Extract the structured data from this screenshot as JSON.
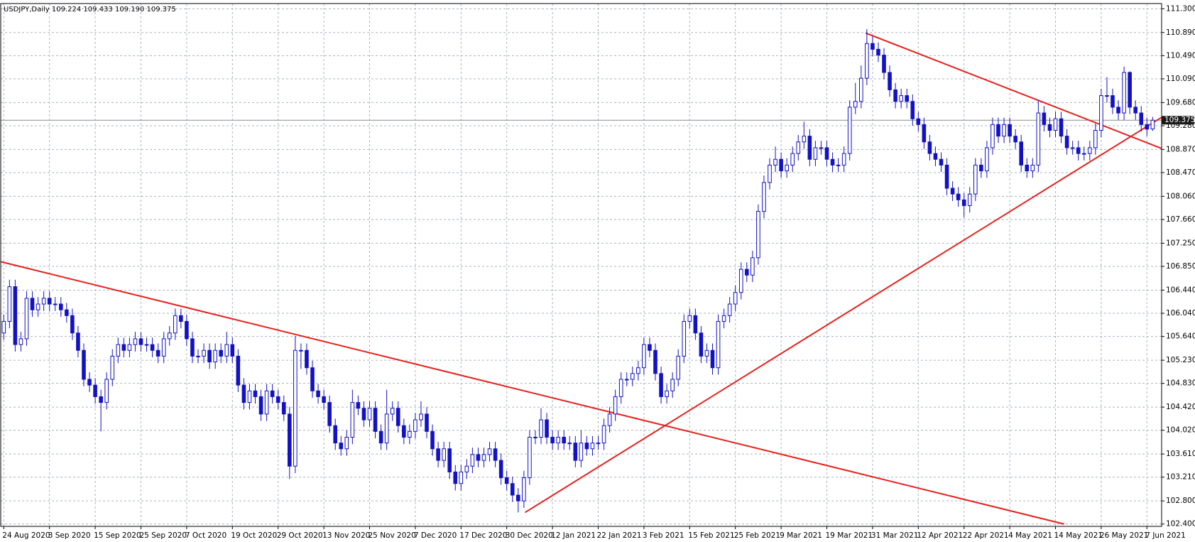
{
  "chart_data": {
    "type": "candlestick",
    "title": "USDJPY,Daily  109.224 109.433 109.190 109.375",
    "color": "#1212c4",
    "up_fill": "#ffffff",
    "grid": true,
    "ylim": [
      102.36,
      111.39
    ],
    "yticks": [
      {
        "value": 111.3,
        "label": "111.300"
      },
      {
        "value": 110.89,
        "label": "110.890"
      },
      {
        "value": 110.49,
        "label": "110.490"
      },
      {
        "value": 110.09,
        "label": "110.090"
      },
      {
        "value": 109.68,
        "label": "109.680"
      },
      {
        "value": 109.28,
        "label": "109.280"
      },
      {
        "value": 108.87,
        "label": "108.870"
      },
      {
        "value": 108.47,
        "label": "108.470"
      },
      {
        "value": 108.06,
        "label": "108.060"
      },
      {
        "value": 107.66,
        "label": "107.660"
      },
      {
        "value": 107.25,
        "label": "107.250"
      },
      {
        "value": 106.85,
        "label": "106.850"
      },
      {
        "value": 106.44,
        "label": "106.440"
      },
      {
        "value": 106.04,
        "label": "106.040"
      },
      {
        "value": 105.64,
        "label": "105.640"
      },
      {
        "value": 105.23,
        "label": "105.230"
      },
      {
        "value": 104.83,
        "label": "104.830"
      },
      {
        "value": 104.42,
        "label": "104.420"
      },
      {
        "value": 104.02,
        "label": "104.020"
      },
      {
        "value": 103.61,
        "label": "103.610"
      },
      {
        "value": 103.21,
        "label": "103.210"
      },
      {
        "value": 102.8,
        "label": "102.800"
      },
      {
        "value": 102.4,
        "label": "102.400"
      }
    ],
    "current_price": 109.375,
    "current_price_color": "#8c8c8c",
    "categories": [
      "24 Aug 2020",
      null,
      null,
      null,
      null,
      null,
      null,
      null,
      "3 Sep 2020",
      null,
      null,
      null,
      null,
      null,
      null,
      null,
      "15 Sep 2020",
      null,
      null,
      null,
      null,
      null,
      null,
      null,
      "25 Sep 2020",
      null,
      null,
      null,
      null,
      null,
      null,
      null,
      "7 Oct 2020",
      null,
      null,
      null,
      null,
      null,
      null,
      null,
      "19 Oct 2020",
      null,
      null,
      null,
      null,
      null,
      null,
      null,
      "29 Oct 2020",
      null,
      null,
      null,
      null,
      null,
      null,
      null,
      "13 Nov 2020",
      null,
      null,
      null,
      null,
      null,
      null,
      null,
      "25 Nov 2020",
      null,
      null,
      null,
      null,
      null,
      null,
      null,
      "7 Dec 2020",
      null,
      null,
      null,
      null,
      null,
      null,
      null,
      "17 Dec 2020",
      null,
      null,
      null,
      null,
      null,
      null,
      null,
      "30 Dec 2020",
      null,
      null,
      null,
      null,
      null,
      null,
      null,
      "12 Jan 2021",
      null,
      null,
      null,
      null,
      null,
      null,
      null,
      "22 Jan 2021",
      null,
      null,
      null,
      null,
      null,
      null,
      null,
      "3 Feb 2021",
      null,
      null,
      null,
      null,
      null,
      null,
      null,
      "15 Feb 2021",
      null,
      null,
      null,
      null,
      null,
      null,
      null,
      "25 Feb 2021",
      null,
      null,
      null,
      null,
      null,
      null,
      null,
      "9 Mar 2021",
      null,
      null,
      null,
      null,
      null,
      null,
      null,
      "19 Mar 2021",
      null,
      null,
      null,
      null,
      null,
      null,
      null,
      "31 Mar 2021",
      null,
      null,
      null,
      null,
      null,
      null,
      null,
      "12 Apr 2021",
      null,
      null,
      null,
      null,
      null,
      null,
      null,
      "22 Apr 2021",
      null,
      null,
      null,
      null,
      null,
      null,
      null,
      "4 May 2021",
      null,
      null,
      null,
      null,
      null,
      null,
      null,
      "14 May 2021",
      null,
      null,
      null,
      null,
      null,
      null,
      null,
      "26 May 2021",
      null,
      null,
      null,
      null,
      null,
      null,
      null,
      "7 Jun 2021",
      null
    ],
    "open": [
      105.7,
      105.9,
      106.5,
      105.5,
      105.6,
      106.3,
      106.1,
      106.2,
      106.3,
      106.2,
      106.2,
      106.1,
      106.0,
      105.7,
      105.4,
      104.9,
      104.8,
      104.6,
      104.5,
      104.9,
      105.3,
      105.5,
      105.4,
      105.5,
      105.6,
      105.5,
      105.5,
      105.4,
      105.3,
      105.6,
      105.7,
      106.0,
      105.9,
      105.6,
      105.3,
      105.3,
      105.4,
      105.2,
      105.4,
      105.3,
      105.5,
      105.3,
      104.8,
      104.5,
      104.7,
      104.6,
      104.3,
      104.7,
      104.6,
      104.5,
      104.3,
      103.4,
      105.4,
      105.4,
      105.1,
      104.7,
      104.6,
      104.5,
      104.1,
      103.8,
      103.7,
      103.9,
      104.5,
      104.4,
      104.2,
      104.4,
      104.0,
      103.8,
      104.3,
      104.4,
      104.1,
      103.9,
      104.0,
      104.2,
      104.3,
      104.0,
      103.7,
      103.5,
      103.7,
      103.3,
      103.1,
      103.3,
      103.4,
      103.6,
      103.5,
      103.6,
      103.7,
      103.5,
      103.2,
      103.1,
      102.9,
      102.8,
      103.2,
      103.9,
      103.9,
      104.2,
      103.9,
      103.8,
      103.9,
      103.8,
      103.8,
      103.5,
      103.8,
      103.7,
      103.8,
      103.8,
      104.1,
      104.3,
      104.6,
      104.9,
      104.9,
      105.0,
      105.1,
      105.5,
      105.4,
      105.0,
      104.6,
      104.7,
      104.9,
      105.3,
      105.9,
      106.0,
      105.7,
      105.3,
      105.4,
      105.1,
      105.9,
      106.0,
      106.2,
      106.4,
      106.8,
      106.7,
      107.0,
      107.8,
      108.3,
      108.6,
      108.7,
      108.5,
      108.6,
      108.8,
      109.0,
      109.1,
      108.7,
      108.9,
      108.9,
      108.7,
      108.6,
      108.6,
      108.8,
      109.6,
      109.7,
      110.1,
      110.7,
      110.6,
      110.5,
      110.2,
      109.9,
      109.7,
      109.8,
      109.7,
      109.4,
      109.3,
      109.0,
      108.8,
      108.7,
      108.6,
      108.2,
      108.1,
      108.0,
      107.9,
      108.1,
      108.6,
      108.5,
      108.9,
      109.3,
      109.1,
      109.3,
      109.1,
      109.0,
      108.6,
      108.5,
      108.6,
      109.5,
      109.3,
      109.2,
      109.4,
      109.1,
      108.9,
      108.9,
      108.8,
      108.8,
      108.9,
      109.2,
      109.8,
      109.8,
      109.6,
      109.5,
      110.2,
      109.6,
      109.5,
      109.3,
      109.224
    ],
    "high": [
      106.02,
      106.62,
      106.62,
      105.72,
      106.42,
      106.42,
      106.32,
      106.42,
      106.42,
      106.32,
      106.32,
      106.22,
      106.12,
      105.82,
      105.52,
      105.02,
      104.92,
      104.72,
      105.02,
      105.42,
      105.62,
      105.62,
      105.62,
      105.72,
      105.72,
      105.62,
      105.62,
      105.52,
      105.72,
      105.82,
      106.12,
      106.12,
      106.02,
      105.72,
      105.42,
      105.52,
      105.52,
      105.52,
      105.52,
      105.72,
      105.62,
      105.42,
      104.92,
      104.82,
      104.82,
      104.72,
      104.82,
      104.82,
      104.72,
      104.62,
      104.42,
      105.65,
      105.52,
      105.52,
      105.22,
      104.82,
      104.72,
      104.62,
      104.22,
      103.92,
      104.02,
      104.72,
      104.62,
      104.52,
      104.52,
      104.52,
      104.12,
      104.72,
      104.52,
      104.52,
      104.22,
      104.12,
      104.32,
      104.52,
      104.42,
      104.12,
      103.82,
      103.82,
      103.82,
      103.42,
      103.42,
      103.52,
      103.72,
      103.72,
      103.72,
      103.82,
      103.82,
      103.62,
      103.32,
      103.22,
      103.02,
      103.32,
      104.02,
      104.02,
      104.4,
      104.32,
      104.02,
      104.02,
      104.02,
      103.92,
      103.92,
      104.02,
      103.92,
      103.92,
      103.92,
      104.22,
      104.42,
      104.72,
      105.02,
      105.02,
      105.12,
      105.22,
      105.62,
      105.62,
      105.52,
      105.12,
      104.82,
      105.02,
      105.42,
      106.02,
      106.12,
      106.12,
      105.82,
      105.52,
      105.52,
      106.02,
      106.12,
      106.32,
      106.52,
      106.92,
      106.92,
      107.12,
      107.92,
      108.42,
      108.72,
      108.92,
      108.82,
      108.72,
      108.92,
      109.12,
      109.35,
      109.22,
      109.02,
      109.02,
      109.02,
      108.82,
      108.72,
      108.92,
      109.72,
      110.02,
      110.32,
      110.95,
      110.82,
      110.72,
      110.62,
      110.32,
      110.02,
      109.92,
      109.92,
      109.82,
      109.52,
      109.42,
      109.12,
      108.92,
      108.82,
      108.72,
      108.32,
      108.22,
      108.12,
      108.22,
      108.72,
      108.72,
      109.02,
      109.42,
      109.42,
      109.42,
      109.42,
      109.22,
      109.12,
      108.72,
      108.72,
      109.72,
      109.62,
      109.42,
      109.52,
      109.52,
      109.22,
      109.02,
      109.02,
      108.92,
      109.02,
      109.32,
      109.92,
      110.12,
      109.92,
      109.72,
      110.3,
      110.22,
      109.72,
      109.62,
      109.42,
      109.433
    ],
    "low": [
      105.58,
      105.78,
      105.38,
      105.38,
      105.48,
      105.98,
      105.98,
      106.08,
      106.08,
      106.08,
      105.98,
      105.88,
      105.58,
      105.28,
      104.78,
      104.68,
      104.48,
      104.0,
      104.38,
      104.78,
      105.18,
      105.28,
      105.28,
      105.38,
      105.38,
      105.38,
      105.28,
      105.18,
      105.18,
      105.48,
      105.58,
      105.78,
      105.48,
      105.18,
      105.18,
      105.18,
      105.08,
      105.08,
      105.18,
      105.18,
      105.18,
      104.68,
      104.38,
      104.38,
      104.48,
      104.18,
      104.18,
      104.48,
      104.38,
      104.18,
      103.18,
      103.28,
      105.08,
      104.98,
      104.58,
      104.48,
      104.38,
      103.98,
      103.68,
      103.58,
      103.58,
      103.78,
      104.28,
      104.08,
      104.08,
      103.88,
      103.68,
      103.68,
      104.18,
      103.98,
      103.78,
      103.78,
      103.88,
      104.08,
      103.88,
      103.58,
      103.38,
      103.38,
      103.18,
      102.98,
      102.98,
      103.18,
      103.28,
      103.38,
      103.38,
      103.48,
      103.38,
      103.08,
      102.98,
      102.78,
      102.6,
      102.68,
      103.08,
      103.78,
      103.78,
      103.78,
      103.68,
      103.68,
      103.68,
      103.68,
      103.38,
      103.38,
      103.58,
      103.58,
      103.68,
      103.68,
      103.98,
      104.18,
      104.48,
      104.78,
      104.78,
      104.88,
      104.98,
      105.28,
      104.88,
      104.48,
      104.48,
      104.58,
      104.78,
      105.18,
      105.78,
      105.58,
      105.18,
      105.18,
      104.98,
      104.98,
      105.78,
      105.88,
      106.08,
      106.28,
      106.58,
      106.58,
      106.88,
      107.68,
      108.18,
      108.48,
      108.38,
      108.38,
      108.48,
      108.68,
      108.88,
      108.58,
      108.58,
      108.78,
      108.58,
      108.48,
      108.48,
      108.48,
      108.68,
      109.48,
      109.58,
      109.98,
      110.48,
      110.38,
      110.08,
      109.78,
      109.58,
      109.58,
      109.58,
      109.28,
      109.18,
      108.88,
      108.68,
      108.58,
      108.48,
      108.08,
      107.98,
      107.88,
      107.7,
      107.78,
      107.98,
      108.38,
      108.38,
      108.78,
      108.98,
      108.98,
      108.98,
      108.88,
      108.48,
      108.38,
      108.38,
      108.48,
      109.18,
      109.08,
      109.08,
      108.98,
      108.78,
      108.78,
      108.68,
      108.68,
      108.68,
      108.78,
      109.08,
      109.68,
      109.48,
      109.38,
      109.38,
      109.48,
      109.38,
      109.18,
      109.1,
      109.19
    ],
    "close": [
      105.9,
      106.5,
      105.5,
      105.6,
      106.3,
      106.1,
      106.2,
      106.3,
      106.2,
      106.2,
      106.1,
      106.0,
      105.7,
      105.4,
      104.9,
      104.8,
      104.6,
      104.5,
      104.9,
      105.3,
      105.5,
      105.4,
      105.5,
      105.6,
      105.5,
      105.5,
      105.4,
      105.3,
      105.6,
      105.7,
      106.0,
      105.9,
      105.6,
      105.3,
      105.3,
      105.4,
      105.2,
      105.4,
      105.3,
      105.5,
      105.3,
      104.8,
      104.5,
      104.7,
      104.6,
      104.3,
      104.7,
      104.6,
      104.5,
      104.3,
      103.4,
      105.4,
      105.4,
      105.1,
      104.7,
      104.6,
      104.5,
      104.1,
      103.8,
      103.7,
      103.9,
      104.5,
      104.4,
      104.2,
      104.4,
      104.0,
      103.8,
      104.3,
      104.4,
      104.1,
      103.9,
      104.0,
      104.2,
      104.3,
      104.0,
      103.7,
      103.5,
      103.7,
      103.3,
      103.1,
      103.3,
      103.4,
      103.6,
      103.5,
      103.6,
      103.7,
      103.5,
      103.2,
      103.1,
      102.9,
      102.8,
      103.2,
      103.9,
      103.9,
      104.2,
      103.9,
      103.8,
      103.9,
      103.8,
      103.8,
      103.5,
      103.8,
      103.7,
      103.8,
      103.8,
      104.1,
      104.3,
      104.6,
      104.9,
      104.9,
      105.0,
      105.1,
      105.5,
      105.4,
      105.0,
      104.6,
      104.7,
      104.9,
      105.3,
      105.9,
      106.0,
      105.7,
      105.3,
      105.4,
      105.1,
      105.9,
      106.0,
      106.2,
      106.4,
      106.8,
      106.7,
      107.0,
      107.8,
      108.3,
      108.6,
      108.7,
      108.5,
      108.6,
      108.8,
      109.0,
      109.1,
      108.7,
      108.9,
      108.9,
      108.7,
      108.6,
      108.6,
      108.8,
      109.6,
      109.7,
      110.1,
      110.7,
      110.6,
      110.5,
      110.2,
      109.9,
      109.7,
      109.8,
      109.7,
      109.4,
      109.3,
      109.0,
      108.8,
      108.7,
      108.6,
      108.2,
      108.1,
      108.0,
      107.9,
      108.1,
      108.6,
      108.5,
      108.9,
      109.3,
      109.1,
      109.3,
      109.1,
      109.0,
      108.6,
      108.5,
      108.6,
      109.5,
      109.3,
      109.2,
      109.4,
      109.1,
      108.9,
      108.9,
      108.8,
      108.8,
      108.9,
      109.2,
      109.8,
      109.8,
      109.6,
      109.5,
      110.2,
      109.6,
      109.5,
      109.3,
      109.22,
      109.375
    ],
    "trendline_color": "#e8201c",
    "trendlines": [
      {
        "x": [
          -0.5,
          185.5
        ],
        "y": [
          106.93,
          102.4
        ]
      },
      {
        "x": [
          91.2,
          202.5
        ],
        "y": [
          102.6,
          109.42
        ]
      },
      {
        "x": [
          150.8,
          202.5
        ],
        "y": [
          110.88,
          108.89
        ]
      }
    ]
  }
}
